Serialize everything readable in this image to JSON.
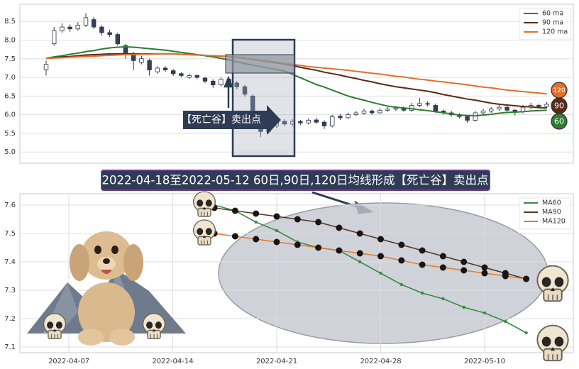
{
  "chart_data": [
    {
      "type": "candlestick",
      "categories": [
        null,
        null,
        null,
        null,
        null,
        null,
        null,
        null,
        null,
        null,
        null,
        null,
        null,
        null,
        null,
        null,
        null,
        null,
        null,
        null,
        null,
        null,
        null,
        null,
        null,
        null,
        null,
        null,
        null,
        null,
        null,
        null,
        null,
        null,
        null,
        null,
        null,
        null,
        null,
        null,
        null,
        null,
        null,
        null,
        null,
        null,
        null,
        null,
        null,
        null,
        null,
        null,
        null,
        null,
        null,
        null,
        null,
        null,
        null,
        null,
        null,
        null,
        null,
        null
      ],
      "open": [
        7.2,
        7.9,
        8.25,
        8.35,
        8.3,
        8.4,
        8.55,
        8.35,
        8.2,
        8.15,
        7.85,
        7.6,
        7.4,
        7.45,
        7.15,
        7.25,
        7.18,
        7.1,
        7.0,
        7.05,
        6.98,
        6.9,
        6.8,
        6.95,
        6.85,
        6.75,
        6.5,
        5.85,
        5.55,
        5.7,
        5.82,
        5.75,
        5.82,
        5.78,
        5.86,
        5.8,
        5.7,
        5.96,
        5.92,
        6.0,
        6.04,
        6.1,
        6.05,
        6.12,
        6.15,
        6.18,
        6.12,
        6.25,
        6.3,
        6.25,
        6.1,
        6.05,
        6.0,
        5.95,
        5.85,
        6.05,
        6.1,
        6.15,
        6.2,
        6.12,
        6.08,
        6.2,
        6.25,
        6.22
      ],
      "high": [
        7.45,
        8.35,
        8.45,
        8.42,
        8.48,
        8.72,
        8.62,
        8.4,
        8.28,
        8.2,
        7.9,
        7.68,
        7.58,
        7.5,
        7.3,
        7.3,
        7.22,
        7.14,
        7.1,
        7.08,
        7.02,
        6.95,
        7.0,
        6.98,
        6.9,
        6.8,
        6.55,
        5.9,
        5.78,
        5.88,
        5.88,
        5.88,
        5.86,
        5.9,
        5.92,
        5.85,
        6.0,
        6.02,
        6.06,
        6.1,
        6.16,
        6.14,
        6.18,
        6.2,
        6.24,
        6.22,
        6.32,
        6.45,
        6.36,
        6.3,
        6.14,
        6.1,
        6.04,
        5.98,
        6.1,
        6.16,
        6.2,
        6.26,
        6.24,
        6.16,
        6.26,
        6.32,
        6.3,
        6.34
      ],
      "low": [
        7.05,
        7.85,
        8.2,
        8.22,
        8.25,
        8.35,
        8.3,
        8.12,
        8.08,
        7.85,
        7.5,
        7.2,
        7.35,
        7.05,
        7.1,
        7.15,
        7.04,
        7.0,
        6.96,
        6.95,
        6.85,
        6.72,
        6.75,
        6.78,
        6.68,
        6.48,
        5.85,
        5.4,
        5.5,
        5.65,
        5.7,
        5.7,
        5.72,
        5.74,
        5.75,
        5.62,
        5.66,
        5.86,
        5.88,
        5.96,
        6.0,
        6.0,
        6.02,
        6.08,
        6.1,
        6.08,
        6.08,
        6.2,
        6.22,
        6.05,
        6.0,
        5.95,
        5.9,
        5.78,
        5.82,
        6.0,
        6.05,
        6.1,
        6.06,
        5.98,
        6.04,
        6.14,
        6.16,
        6.18
      ],
      "close": [
        7.35,
        8.25,
        8.35,
        8.3,
        8.4,
        8.6,
        8.35,
        8.2,
        8.15,
        7.9,
        7.6,
        7.45,
        7.5,
        7.2,
        7.25,
        7.2,
        7.1,
        7.05,
        7.05,
        7.0,
        6.9,
        6.8,
        6.95,
        6.85,
        6.75,
        6.55,
        5.9,
        5.55,
        5.7,
        5.8,
        5.75,
        5.82,
        5.78,
        5.85,
        5.8,
        5.7,
        5.95,
        5.92,
        6.0,
        6.05,
        6.1,
        6.05,
        6.12,
        6.15,
        6.18,
        6.12,
        6.25,
        6.3,
        6.28,
        6.1,
        6.05,
        6.0,
        5.95,
        5.85,
        6.05,
        6.1,
        6.15,
        6.2,
        6.12,
        6.08,
        6.2,
        6.25,
        6.22,
        6.28
      ],
      "up_color": "#ffffff",
      "down_color": "#34405a",
      "edge_color": "#2b3548",
      "series": [
        {
          "name": "60 ma",
          "color": "#2e7d32",
          "end_label": "60",
          "values": [
            7.51,
            7.55,
            7.58,
            7.62,
            7.65,
            7.69,
            7.72,
            7.76,
            7.79,
            7.81,
            7.82,
            7.81,
            7.79,
            7.77,
            7.75,
            7.73,
            7.7,
            7.67,
            7.64,
            7.61,
            7.58,
            7.55,
            7.51,
            7.47,
            7.42,
            7.37,
            7.33,
            7.29,
            7.25,
            7.21,
            7.17,
            7.08,
            6.99,
            6.9,
            6.81,
            6.74,
            6.66,
            6.58,
            6.5,
            6.44,
            6.39,
            6.33,
            6.28,
            6.23,
            6.2,
            6.18,
            6.16,
            6.13,
            6.11,
            6.08,
            6.05,
            6.02,
            5.99,
            5.98,
            5.97,
            5.99,
            6.01,
            6.04,
            6.06,
            6.07,
            6.08,
            6.1,
            6.11,
            6.12
          ]
        },
        {
          "name": "90 ma",
          "color": "#5b2a1a",
          "end_label": "90",
          "values": [
            7.51,
            7.53,
            7.55,
            7.56,
            7.58,
            7.6,
            7.61,
            7.62,
            7.63,
            7.63,
            7.63,
            7.63,
            7.63,
            7.63,
            7.63,
            7.63,
            7.63,
            7.62,
            7.61,
            7.6,
            7.59,
            7.58,
            7.57,
            7.56,
            7.54,
            7.51,
            7.48,
            7.45,
            7.42,
            7.39,
            7.36,
            7.32,
            7.27,
            7.23,
            7.19,
            7.14,
            7.1,
            7.06,
            7.01,
            6.97,
            6.92,
            6.88,
            6.83,
            6.79,
            6.75,
            6.72,
            6.69,
            6.66,
            6.63,
            6.59,
            6.54,
            6.5,
            6.46,
            6.42,
            6.39,
            6.35,
            6.31,
            6.28,
            6.26,
            6.24,
            6.22,
            6.21,
            6.19,
            6.18
          ]
        },
        {
          "name": "120 ma",
          "color": "#e0702a",
          "end_label": "120",
          "values": [
            7.51,
            7.52,
            7.53,
            7.54,
            7.55,
            7.56,
            7.57,
            7.58,
            7.59,
            7.6,
            7.61,
            7.61,
            7.62,
            7.62,
            7.63,
            7.63,
            7.63,
            7.62,
            7.61,
            7.6,
            7.59,
            7.58,
            7.57,
            7.56,
            7.54,
            7.52,
            7.49,
            7.46,
            7.44,
            7.41,
            7.38,
            7.35,
            7.32,
            7.29,
            7.27,
            7.25,
            7.23,
            7.21,
            7.19,
            7.16,
            7.14,
            7.11,
            7.09,
            7.06,
            7.03,
            7.01,
            6.98,
            6.95,
            6.93,
            6.9,
            6.88,
            6.85,
            6.83,
            6.8,
            6.77,
            6.74,
            6.72,
            6.69,
            6.66,
            6.64,
            6.62,
            6.6,
            6.58,
            6.56
          ]
        }
      ],
      "ylim": [
        4.7,
        8.96
      ],
      "yticks": [
        {
          "value": 5,
          "label": "5.0"
        },
        5.5,
        {
          "value": 6,
          "label": "6.0"
        },
        6.5,
        {
          "value": 7,
          "label": "7.0"
        },
        7.5,
        {
          "value": 8,
          "label": "8.0"
        },
        8.5
      ],
      "grid": true,
      "legend": "upper right",
      "annotation": "【死亡谷】卖出点"
    },
    {
      "type": "line",
      "categories": [
        "2022-04-07",
        null,
        null,
        null,
        null,
        "2022-04-14",
        null,
        null,
        null,
        null,
        "2022-04-21",
        null,
        null,
        null,
        null,
        "2022-04-28",
        null,
        null,
        null,
        null,
        "2022-05-10",
        null,
        null
      ],
      "series": [
        {
          "name": "MA60",
          "color": "#3a8a44",
          "markers": "small",
          "values": [
            null,
            null,
            null,
            null,
            null,
            null,
            null,
            7.6,
            7.58,
            7.54,
            7.51,
            7.47,
            7.45,
            7.44,
            7.4,
            7.36,
            7.32,
            7.29,
            7.27,
            7.24,
            7.22,
            7.19,
            7.15
          ]
        },
        {
          "name": "MA90",
          "color": "#5a3525",
          "markers": "large",
          "values": [
            null,
            null,
            null,
            null,
            null,
            null,
            null,
            7.59,
            7.58,
            7.57,
            7.56,
            7.55,
            7.54,
            7.52,
            7.5,
            7.48,
            7.46,
            7.44,
            7.42,
            7.4,
            7.38,
            7.36,
            7.34
          ]
        },
        {
          "name": "MA120",
          "color": "#e8792a",
          "markers": "large",
          "values": [
            null,
            null,
            null,
            null,
            null,
            null,
            null,
            7.5,
            7.49,
            7.48,
            7.47,
            7.46,
            7.45,
            7.44,
            7.43,
            7.42,
            7.405,
            7.39,
            7.38,
            7.37,
            7.36,
            7.35,
            7.34
          ]
        }
      ],
      "ylim": [
        7.08,
        7.64
      ],
      "yticks": [
        7.1,
        7.2,
        7.3,
        7.4,
        7.5,
        7.6
      ],
      "grid": true,
      "legend": "upper right"
    }
  ],
  "caption": "2022-04-18至2022-05-12 60日,90日,120日均线形成【死亡谷】卖出点"
}
